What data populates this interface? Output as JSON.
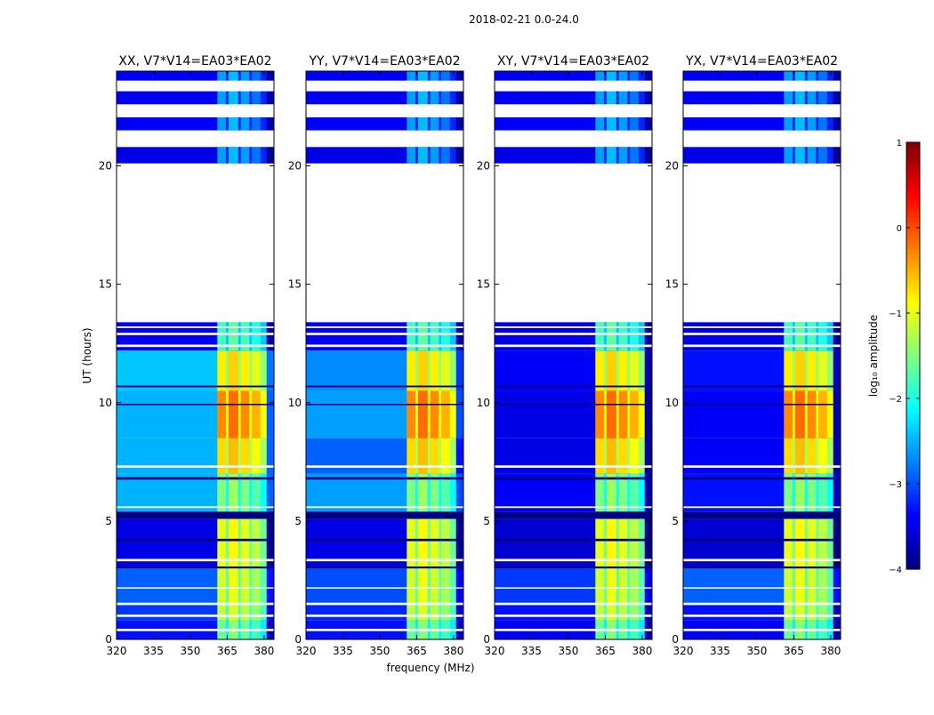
{
  "chart_data": {
    "type": "heatmap",
    "suptitle": "2018-02-21 0.0-24.0",
    "xlabel": "frequency (MHz)",
    "ylabel": "UT (hours)",
    "xlim": [
      320,
      384
    ],
    "ylim": [
      0,
      24
    ],
    "xticks": [
      320,
      335,
      350,
      365,
      380
    ],
    "yticks": [
      0,
      5,
      10,
      15,
      20
    ],
    "panels": [
      {
        "title": "XX, V7*V14=EA03*EA02",
        "pol": "XX"
      },
      {
        "title": "YY, V7*V14=EA03*EA02",
        "pol": "YY"
      },
      {
        "title": "XY, V7*V14=EA03*EA02",
        "pol": "XY"
      },
      {
        "title": "YX, V7*V14=EA03*EA02",
        "pol": "YX"
      }
    ],
    "time_segments": [
      {
        "t": [
          0.0,
          0.8
        ],
        "base": [
          -3.3,
          -3.3,
          -3.4,
          -3.4
        ],
        "rfi": -1.6
      },
      {
        "t": [
          0.8,
          1.5
        ],
        "base": [
          -3.1,
          -3.2,
          -3.3,
          -3.3
        ],
        "rfi": -1.2
      },
      {
        "t": [
          1.5,
          3.0
        ],
        "base": [
          -2.9,
          -3.0,
          -3.1,
          -2.9
        ],
        "rfi": -1.1
      },
      {
        "t": [
          3.0,
          5.1
        ],
        "base": [
          -3.5,
          -3.5,
          -3.6,
          -3.6
        ],
        "rfi": -1.0
      },
      {
        "t": [
          5.1,
          5.4
        ],
        "base": [
          -3.9,
          -3.9,
          -3.9,
          -3.9
        ],
        "rfi": -3.9
      },
      {
        "t": [
          5.4,
          7.0
        ],
        "base": [
          -2.5,
          -2.6,
          -3.4,
          -3.3
        ],
        "rfi": -1.5
      },
      {
        "t": [
          7.0,
          8.5
        ],
        "base": [
          -2.5,
          -2.9,
          -3.5,
          -3.4
        ],
        "rfi": -0.7
      },
      {
        "t": [
          8.5,
          10.5
        ],
        "base": [
          -2.5,
          -2.6,
          -3.5,
          -3.4
        ],
        "rfi": -0.3
      },
      {
        "t": [
          10.5,
          12.2
        ],
        "base": [
          -2.4,
          -2.7,
          -3.4,
          -3.3
        ],
        "rfi": -0.8
      },
      {
        "t": [
          12.2,
          13.4
        ],
        "base": [
          -3.4,
          -3.4,
          -3.5,
          -3.5
        ],
        "rfi": -1.8
      },
      {
        "t": [
          20.1,
          20.8
        ],
        "base": [
          -3.5,
          -3.5,
          -3.5,
          -3.5
        ],
        "rfi": -2.6
      },
      {
        "t": [
          21.5,
          24.0
        ],
        "base": [
          -3.4,
          -3.4,
          -3.4,
          -3.4
        ],
        "rfi": -2.6
      }
    ],
    "rfi_band_mhz": [
      361,
      381
    ],
    "rfi_subchannels_mhz": [
      [
        361,
        364.5
      ],
      [
        365.5,
        369.5
      ],
      [
        370.5,
        374
      ],
      [
        375,
        378.5
      ]
    ],
    "flagged_ranges": [
      [
        13.4,
        20.1
      ],
      [
        20.8,
        21.45
      ],
      [
        22.05,
        22.6
      ],
      [
        23.15,
        23.6
      ],
      [
        0.35,
        0.45
      ],
      [
        0.95,
        1.05
      ],
      [
        1.45,
        1.55
      ],
      [
        2.15,
        2.2
      ],
      [
        3.3,
        3.4
      ],
      [
        5.55,
        5.62
      ],
      [
        7.25,
        7.35
      ],
      [
        12.35,
        12.45
      ],
      [
        12.85,
        12.95
      ],
      [
        13.15,
        13.22
      ]
    ],
    "dead_lines": [
      [
        5.1,
        5.3
      ],
      [
        6.75,
        6.85
      ],
      [
        9.9,
        9.95
      ],
      [
        10.65,
        10.72
      ],
      [
        4.15,
        4.25
      ],
      [
        3.0,
        3.08
      ]
    ],
    "colorbar": {
      "label": "log₁₀ amplitude",
      "range": [
        -4,
        1
      ],
      "ticks": [
        1,
        0,
        -1,
        -2,
        -3,
        -4
      ],
      "tick_labels": [
        "1",
        "0",
        "−1",
        "−2",
        "−3",
        "−4"
      ],
      "colormap": "jet"
    }
  }
}
